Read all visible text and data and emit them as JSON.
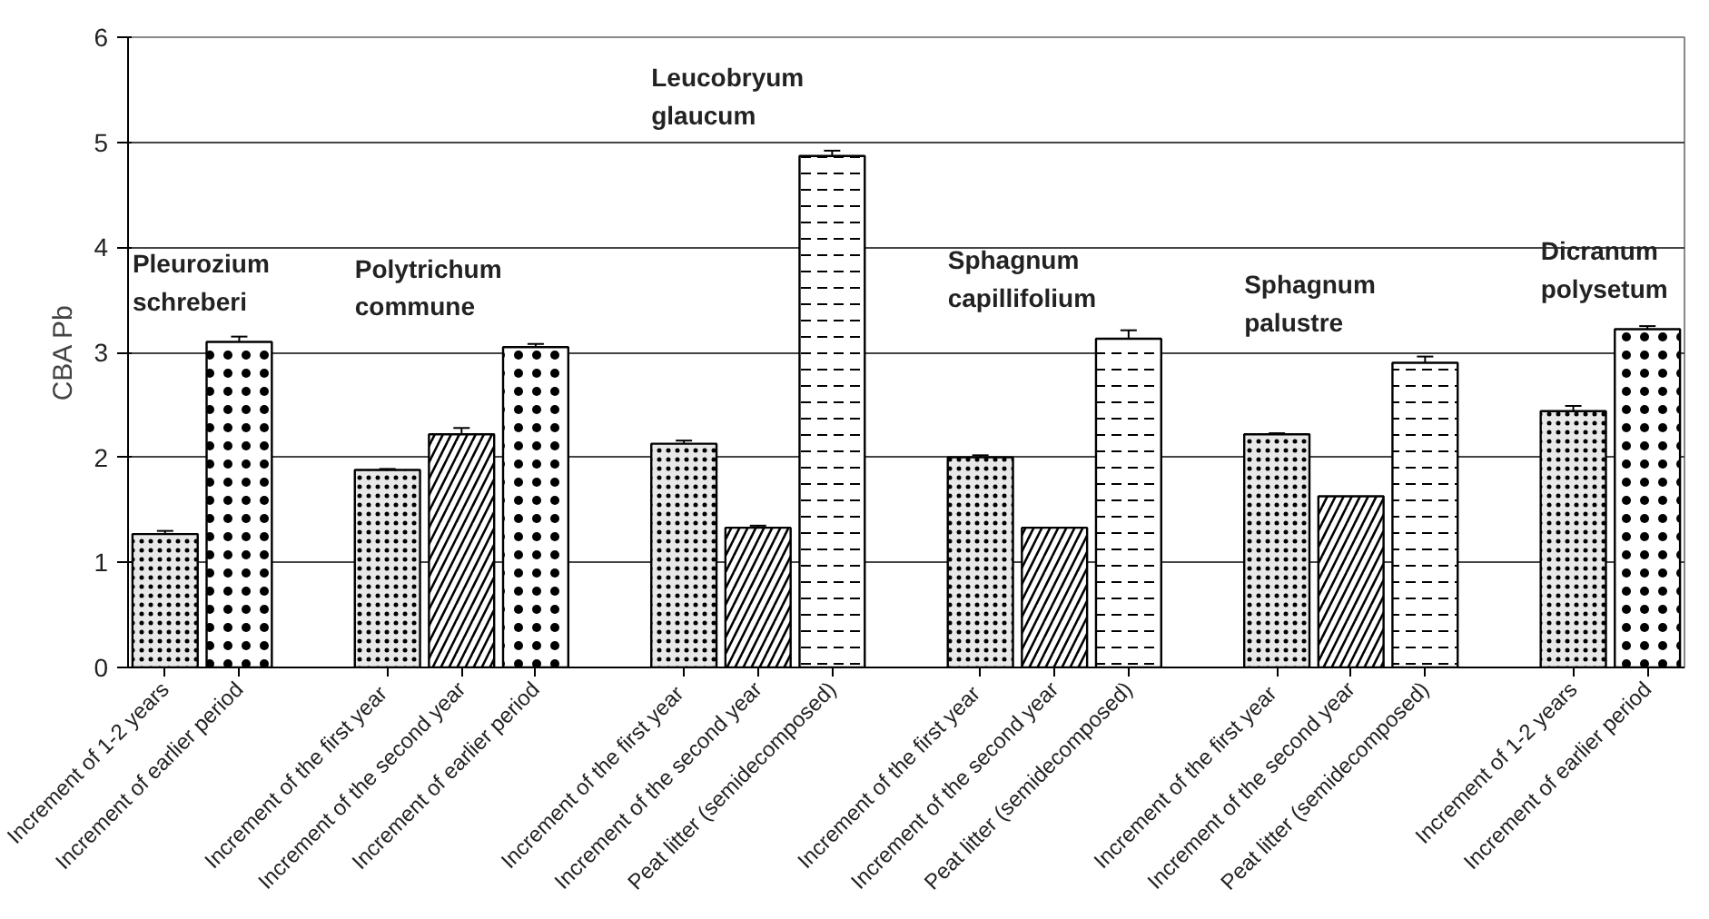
{
  "chart_data": {
    "type": "bar",
    "ylabel": "CBA Pb",
    "categories": [
      "Increment of 1-2 years",
      "Increment of earlier period",
      null,
      "Increment of  the first year",
      "Increment of the second year",
      "Increment of earlier period",
      null,
      "Increment of  the first year",
      "Increment of the second year",
      "Peat litter (semidecomposed)",
      null,
      "Increment of  the first year",
      "Increment of the second year",
      "Peat litter (semidecomposed)",
      null,
      "Increment of  the first year",
      "Increment of the second year",
      "Peat litter (semidecomposed)",
      null,
      "Increment of 1-2 years",
      "Increment of earlier period"
    ],
    "series": [
      {
        "color": "#e8e8e8",
        "values": [
          1.27,
          null,
          null,
          1.88,
          null,
          null,
          null,
          2.13,
          null,
          null,
          null,
          2.0,
          null,
          null,
          null,
          2.22,
          null,
          null,
          null,
          2.44,
          null
        ],
        "errors": [
          0.03,
          null,
          null,
          0.01,
          null,
          null,
          null,
          0.03,
          null,
          null,
          null,
          0.02,
          null,
          null,
          null,
          0.01,
          null,
          null,
          null,
          0.05,
          null
        ]
      },
      {
        "color": "#ffffff",
        "values": [
          null,
          3.1,
          null,
          null,
          null,
          3.05,
          null,
          null,
          null,
          null,
          null,
          null,
          null,
          null,
          null,
          null,
          null,
          null,
          null,
          null,
          3.22
        ],
        "errors": [
          null,
          0.05,
          null,
          null,
          null,
          0.03,
          null,
          null,
          null,
          null,
          null,
          null,
          null,
          null,
          null,
          null,
          null,
          null,
          null,
          null,
          0.03
        ]
      },
      {
        "color": "#ffffff",
        "values": [
          null,
          null,
          null,
          null,
          2.22,
          null,
          null,
          null,
          1.33,
          null,
          null,
          null,
          1.33,
          null,
          null,
          null,
          1.63,
          null,
          null,
          null,
          null
        ],
        "errors": [
          null,
          null,
          null,
          null,
          0.06,
          null,
          null,
          null,
          0.02,
          null,
          null,
          null,
          null,
          null,
          null,
          null,
          null,
          null,
          null,
          null,
          null
        ]
      },
      {
        "color": "#ffffff",
        "values": [
          null,
          null,
          null,
          null,
          null,
          null,
          null,
          null,
          null,
          4.87,
          null,
          null,
          null,
          3.13,
          null,
          null,
          null,
          2.9,
          null,
          null,
          null
        ],
        "errors": [
          null,
          null,
          null,
          null,
          null,
          null,
          null,
          null,
          null,
          0.05,
          null,
          null,
          null,
          0.08,
          null,
          null,
          null,
          0.06,
          null,
          null,
          null
        ]
      }
    ],
    "ylim": [
      0,
      6
    ],
    "yticks": [
      0,
      1,
      2,
      3,
      4,
      5,
      6
    ],
    "grid": "y",
    "annotations": [
      "Pleurozium schreberi",
      "Polytrichum commune",
      "Leucobryum glaucum",
      "Sphagnum capillifolium",
      "Sphagnum palustre",
      "Dicranum polysetum"
    ]
  }
}
